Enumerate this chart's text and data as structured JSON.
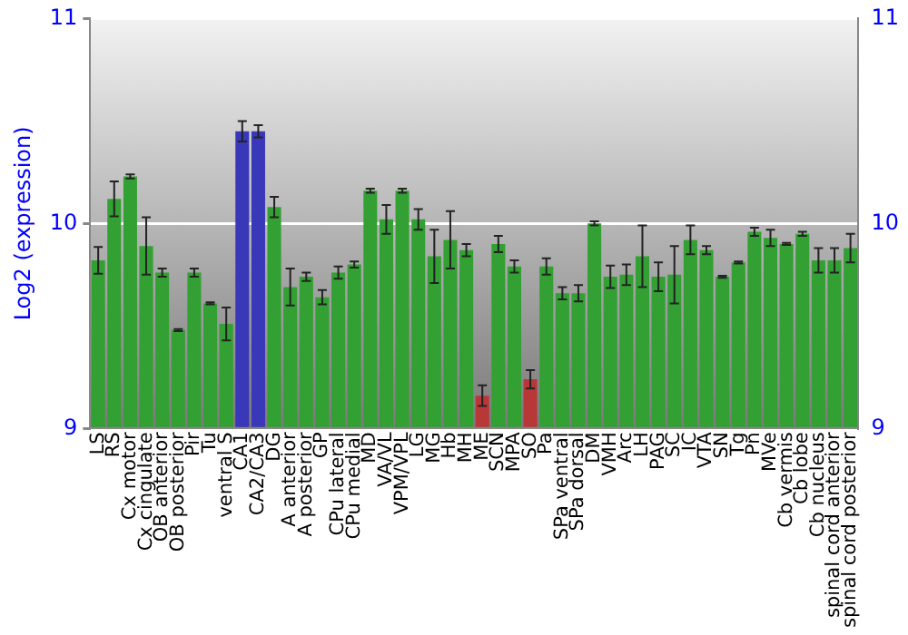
{
  "chart_data": {
    "type": "bar",
    "ylabel": "Log2 (expression)",
    "categories": [
      "LS",
      "RS",
      "Cx motor",
      "Cx cingulate",
      "OB anterior",
      "OB posterior",
      "Pir",
      "Tu",
      "ventral S",
      "CA1",
      "CA2/CA3",
      "DG",
      "A anterior",
      "A posterior",
      "GP",
      "CPu lateral",
      "CPu medial",
      "MD",
      "VA/VL",
      "VPM/VPL",
      "LG",
      "MG",
      "Hb",
      "MH",
      "ME",
      "SCN",
      "MPA",
      "SO",
      "Pa",
      "SPa ventral",
      "SPa dorsal",
      "DM",
      "VMH",
      "Arc",
      "LH",
      "PAG",
      "SC",
      "IC",
      "VTA",
      "SN",
      "Tg",
      "Pn",
      "MVe",
      "Cb vermis",
      "Cb lobe",
      "Cb nucleus",
      "spinal cord anterior",
      "spinal cord posterior"
    ],
    "values": [
      9.82,
      10.12,
      10.23,
      9.89,
      9.76,
      9.48,
      9.76,
      9.61,
      9.51,
      10.45,
      10.45,
      10.08,
      9.69,
      9.74,
      9.64,
      9.76,
      9.8,
      10.16,
      10.02,
      10.16,
      10.02,
      9.84,
      9.92,
      9.87,
      9.16,
      9.9,
      9.79,
      9.24,
      9.79,
      9.66,
      9.66,
      10.0,
      9.74,
      9.75,
      9.84,
      9.74,
      9.75,
      9.92,
      9.87,
      9.74,
      9.81,
      9.96,
      9.93,
      9.9,
      9.95,
      9.82,
      9.82,
      9.88
    ],
    "errors": [
      0.065,
      0.085,
      0.01,
      0.14,
      0.02,
      0.005,
      0.02,
      0.005,
      0.08,
      0.05,
      0.03,
      0.05,
      0.09,
      0.02,
      0.035,
      0.03,
      0.015,
      0.01,
      0.07,
      0.01,
      0.05,
      0.13,
      0.14,
      0.03,
      0.05,
      0.04,
      0.03,
      0.045,
      0.04,
      0.03,
      0.04,
      0.01,
      0.055,
      0.05,
      0.15,
      0.07,
      0.14,
      0.07,
      0.02,
      0.005,
      0.005,
      0.02,
      0.04,
      0.005,
      0.01,
      0.06,
      0.06,
      0.07
    ],
    "colors": [
      "#33a033",
      "#33a033",
      "#33a033",
      "#33a033",
      "#33a033",
      "#33a033",
      "#33a033",
      "#33a033",
      "#33a033",
      "#3838b8",
      "#3838b8",
      "#33a033",
      "#33a033",
      "#33a033",
      "#33a033",
      "#33a033",
      "#33a033",
      "#33a033",
      "#33a033",
      "#33a033",
      "#33a033",
      "#33a033",
      "#33a033",
      "#33a033",
      "#b83838",
      "#33a033",
      "#33a033",
      "#b83838",
      "#33a033",
      "#33a033",
      "#33a033",
      "#33a033",
      "#33a033",
      "#33a033",
      "#33a033",
      "#33a033",
      "#33a033",
      "#33a033",
      "#33a033",
      "#33a033",
      "#33a033",
      "#33a033",
      "#33a033",
      "#33a033",
      "#33a033",
      "#33a033",
      "#33a033",
      "#33a033"
    ],
    "ylim": [
      9,
      11
    ],
    "yticks": [
      9,
      10,
      11
    ],
    "y2lim": [
      9,
      11
    ],
    "y2ticks": [
      9,
      10,
      11
    ],
    "grid": "y",
    "legend": false
  }
}
